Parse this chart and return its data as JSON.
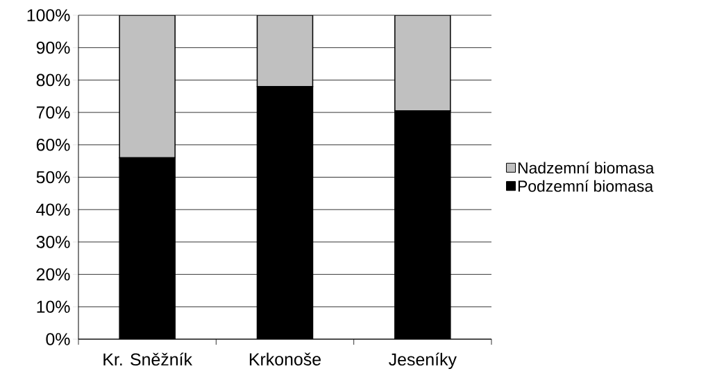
{
  "chart_data": {
    "type": "bar",
    "stacked": true,
    "categories": [
      "Kr. Sněžník",
      "Krkonoše",
      "Jeseníky"
    ],
    "series": [
      {
        "name": "Podzemní biomasa",
        "color": "#000000",
        "values": [
          56,
          78,
          70.5
        ]
      },
      {
        "name": "Nadzemní biomasa",
        "color": "#c0c0c0",
        "values": [
          44,
          22,
          29.5
        ]
      }
    ],
    "ylim": [
      0,
      100
    ],
    "yticks": [
      {
        "value": 0,
        "label": "0%"
      },
      {
        "value": 10,
        "label": "10%"
      },
      {
        "value": 20,
        "label": "20%"
      },
      {
        "value": 30,
        "label": "30%"
      },
      {
        "value": 40,
        "label": "40%"
      },
      {
        "value": 50,
        "label": "50%"
      },
      {
        "value": 60,
        "label": "60%"
      },
      {
        "value": 70,
        "label": "70%"
      },
      {
        "value": 80,
        "label": "80%"
      },
      {
        "value": 90,
        "label": "90%"
      },
      {
        "value": 100,
        "label": "100%"
      }
    ],
    "grid": "y",
    "legend": "right"
  }
}
